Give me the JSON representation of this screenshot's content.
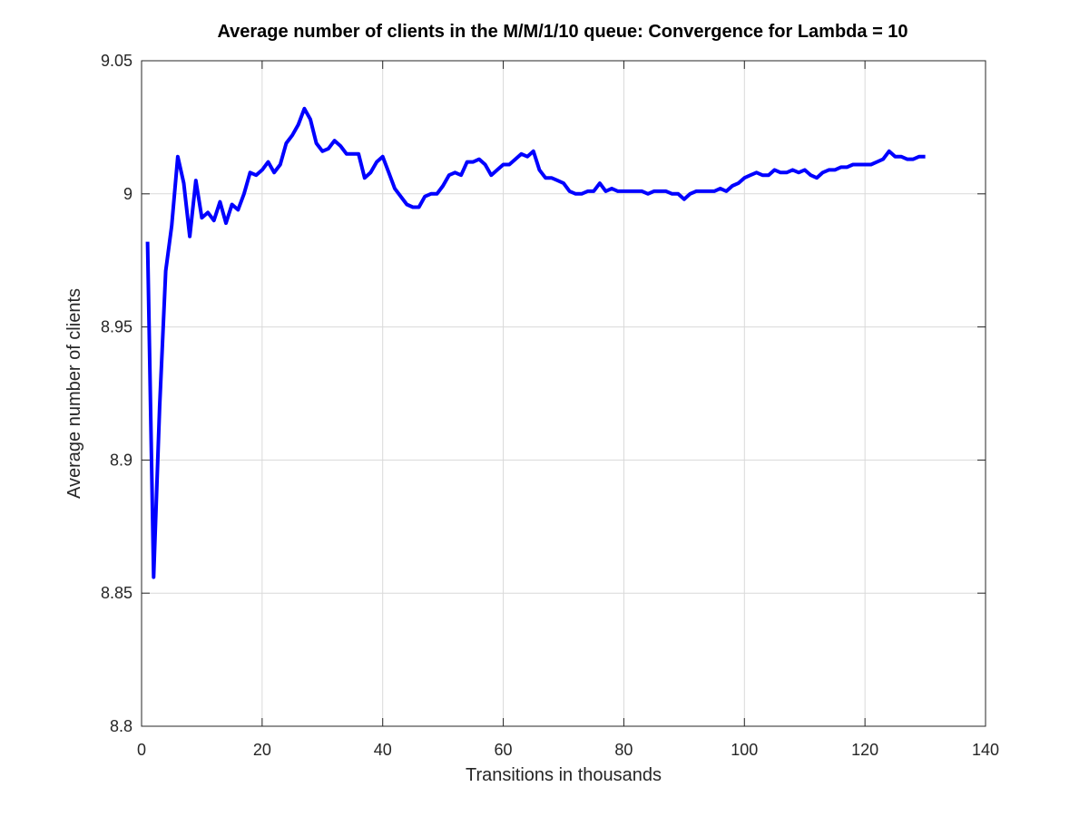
{
  "chart_data": {
    "type": "line",
    "title": "Average number of clients in the M/M/1/10 queue: Convergence for Lambda = 10",
    "xlabel": "Transitions in thousands",
    "ylabel": "Average number of clients",
    "xlim": [
      0,
      140
    ],
    "ylim": [
      8.8,
      9.05
    ],
    "xticks": [
      0,
      20,
      40,
      60,
      80,
      100,
      120,
      140
    ],
    "xtick_labels": [
      "0",
      "20",
      "40",
      "60",
      "80",
      "100",
      "120",
      "140"
    ],
    "yticks": [
      8.8,
      8.85,
      8.9,
      8.95,
      9,
      9.05
    ],
    "ytick_labels": [
      "8.8",
      "8.85",
      "8.9",
      "8.95",
      "9",
      "9.05"
    ],
    "grid": true,
    "series": [
      {
        "color": "#0000ff",
        "x": [
          1,
          2,
          3,
          4,
          5,
          6,
          7,
          8,
          9,
          10,
          11,
          12,
          13,
          14,
          15,
          16,
          17,
          18,
          19,
          20,
          21,
          22,
          23,
          24,
          25,
          26,
          27,
          28,
          29,
          30,
          31,
          32,
          33,
          34,
          35,
          36,
          37,
          38,
          39,
          40,
          41,
          42,
          43,
          44,
          45,
          46,
          47,
          48,
          49,
          50,
          51,
          52,
          53,
          54,
          55,
          56,
          57,
          58,
          59,
          60,
          61,
          62,
          63,
          64,
          65,
          66,
          67,
          68,
          69,
          70,
          71,
          72,
          73,
          74,
          75,
          76,
          77,
          78,
          79,
          80,
          81,
          82,
          83,
          84,
          85,
          86,
          87,
          88,
          89,
          90,
          91,
          92,
          93,
          94,
          95,
          96,
          97,
          98,
          99,
          100,
          101,
          102,
          103,
          104,
          105,
          106,
          107,
          108,
          109,
          110,
          111,
          112,
          113,
          114,
          115,
          116,
          117,
          118,
          119,
          120,
          121,
          122,
          123,
          124,
          125,
          126,
          127,
          128,
          129,
          130
        ],
        "values": [
          8.982,
          8.856,
          8.92,
          8.971,
          8.988,
          9.014,
          9.004,
          8.984,
          9.005,
          8.991,
          8.993,
          8.99,
          8.997,
          8.989,
          8.996,
          8.994,
          9.0,
          9.008,
          9.007,
          9.009,
          9.012,
          9.008,
          9.011,
          9.019,
          9.022,
          9.026,
          9.032,
          9.028,
          9.019,
          9.016,
          9.017,
          9.02,
          9.018,
          9.015,
          9.015,
          9.015,
          9.006,
          9.008,
          9.012,
          9.014,
          9.008,
          9.002,
          8.999,
          8.996,
          8.995,
          8.995,
          8.999,
          9.0,
          9.0,
          9.003,
          9.007,
          9.008,
          9.007,
          9.012,
          9.012,
          9.013,
          9.011,
          9.007,
          9.009,
          9.011,
          9.011,
          9.013,
          9.015,
          9.014,
          9.016,
          9.009,
          9.006,
          9.006,
          9.005,
          9.004,
          9.001,
          9.0,
          9.0,
          9.001,
          9.001,
          9.004,
          9.001,
          9.002,
          9.001,
          9.001,
          9.001,
          9.001,
          9.001,
          9.0,
          9.001,
          9.001,
          9.001,
          9.0,
          9.0,
          8.998,
          9.0,
          9.001,
          9.001,
          9.001,
          9.001,
          9.002,
          9.001,
          9.003,
          9.004,
          9.006,
          9.007,
          9.008,
          9.007,
          9.007,
          9.009,
          9.008,
          9.008,
          9.009,
          9.008,
          9.009,
          9.007,
          9.006,
          9.008,
          9.009,
          9.009,
          9.01,
          9.01,
          9.011,
          9.011,
          9.011,
          9.011,
          9.012,
          9.013,
          9.016,
          9.014,
          9.014,
          9.013,
          9.013,
          9.014,
          9.014
        ]
      }
    ]
  }
}
